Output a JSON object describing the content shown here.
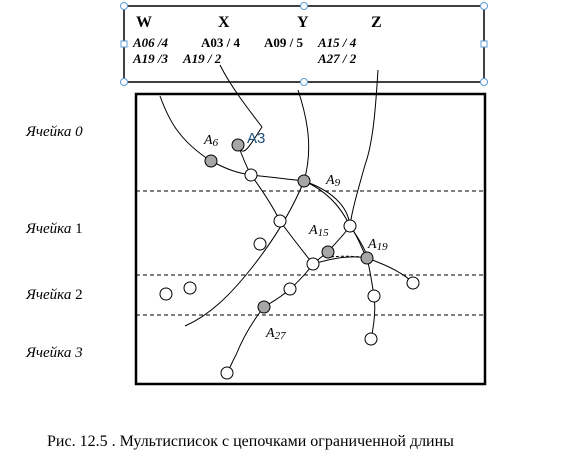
{
  "header": {
    "columns": [
      "W",
      "X",
      "Y",
      "Z"
    ],
    "row1": [
      {
        "pre": "A06",
        "post": " /4"
      },
      {
        "pre": "A03",
        "post": " / 4"
      },
      {
        "pre": "A09",
        "post": " / 5"
      },
      {
        "pre": "A15",
        "post": " / 4"
      }
    ],
    "row2": [
      {
        "pre": "A19",
        "post": " /3"
      },
      {
        "pre": "A19",
        "post": " / 2"
      },
      {
        "pre": "A27",
        "post": " / 2"
      }
    ]
  },
  "cells": [
    "Ячейка 0",
    "Ячейка 1",
    "Ячейка 2",
    "Ячейка 3"
  ],
  "cell_names": [
    "Ячейка",
    "Ячейка",
    "Ячейка",
    "Ячейка"
  ],
  "cell_numbers": [
    "0",
    "1",
    "2",
    "3"
  ],
  "node_labels": {
    "a6": {
      "letter": "A",
      "sub": "6"
    },
    "a3": {
      "text": "A3"
    },
    "a9": {
      "letter": "A",
      "sub": "9"
    },
    "a15": {
      "letter": "A",
      "sub": "15"
    },
    "a19": {
      "letter": "A",
      "sub": "19"
    },
    "a27": {
      "letter": "A",
      "sub": "27"
    }
  },
  "caption": "Рис. 12.5 . Мультисписок с цепочками ограниченной длины",
  "colors": {
    "filled_node": "#a6a6a6",
    "empty_node": "#ffffff",
    "frame_handle": "#5b9bd5",
    "a3_label": "#1f4e79"
  }
}
